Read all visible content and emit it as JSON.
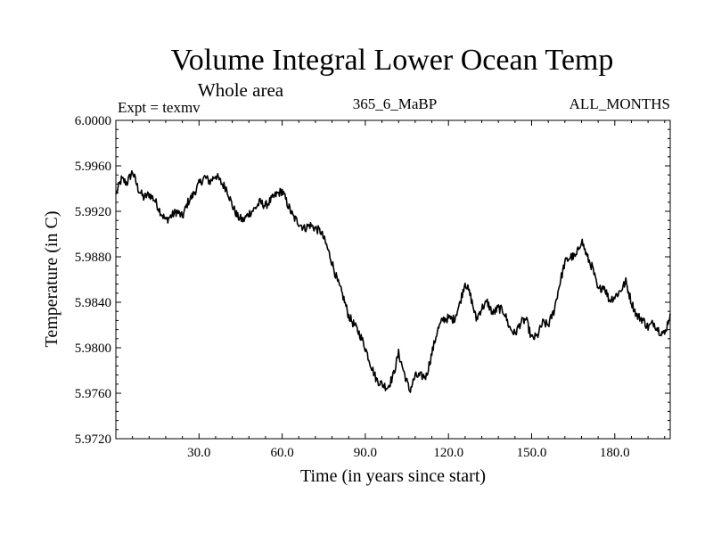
{
  "chart_data": {
    "type": "line",
    "title": "Volume Integral Lower Ocean Temp",
    "subtitle": "Whole area",
    "experiment": "Expt = texmv",
    "run_label": "365_6_MaBP",
    "months_label": "ALL_MONTHS",
    "xlabel": "Time (in years since start)",
    "ylabel": "Temperature (in C)",
    "xlim": [
      0,
      200
    ],
    "ylim": [
      5.972,
      6.0
    ],
    "xticks": [
      30,
      60,
      90,
      120,
      150,
      180
    ],
    "xtick_labels": [
      "30.0",
      "60.0",
      "90.0",
      "120.0",
      "150.0",
      "180.0"
    ],
    "yticks": [
      5.972,
      5.976,
      5.98,
      5.984,
      5.988,
      5.992,
      5.996,
      6.0
    ],
    "ytick_labels": [
      "5.9720",
      "5.9760",
      "5.9800",
      "5.9840",
      "5.9880",
      "5.9920",
      "5.9960",
      "6.0000"
    ],
    "line_color": "#000000",
    "series": [
      {
        "name": "Volume Integral Lower Ocean Temp",
        "x": [
          0,
          2,
          4,
          6,
          8,
          10,
          12,
          14,
          16,
          18,
          20,
          22,
          24,
          26,
          28,
          30,
          32,
          34,
          36,
          38,
          40,
          42,
          44,
          46,
          48,
          50,
          52,
          54,
          56,
          58,
          60,
          62,
          64,
          66,
          68,
          70,
          72,
          74,
          76,
          78,
          80,
          82,
          84,
          86,
          88,
          90,
          92,
          94,
          96,
          98,
          100,
          102,
          104,
          106,
          108,
          110,
          112,
          114,
          116,
          118,
          120,
          122,
          124,
          126,
          128,
          130,
          132,
          134,
          136,
          138,
          140,
          142,
          144,
          146,
          148,
          150,
          152,
          154,
          156,
          158,
          160,
          162,
          164,
          166,
          168,
          170,
          172,
          174,
          176,
          178,
          180,
          182,
          184,
          186,
          188,
          190,
          192,
          194,
          196,
          198,
          200
        ],
        "values": [
          5.9935,
          5.9948,
          5.9945,
          5.9955,
          5.994,
          5.9932,
          5.9935,
          5.993,
          5.992,
          5.9912,
          5.9916,
          5.992,
          5.9915,
          5.9928,
          5.9935,
          5.9944,
          5.995,
          5.9946,
          5.9952,
          5.9945,
          5.994,
          5.9925,
          5.9915,
          5.9912,
          5.9918,
          5.9922,
          5.9928,
          5.9925,
          5.993,
          5.9935,
          5.9938,
          5.9926,
          5.9915,
          5.991,
          5.9905,
          5.9908,
          5.9905,
          5.9902,
          5.989,
          5.9875,
          5.9858,
          5.9845,
          5.9828,
          5.982,
          5.9812,
          5.98,
          5.9785,
          5.9772,
          5.9768,
          5.9765,
          5.9775,
          5.9795,
          5.9778,
          5.9762,
          5.9775,
          5.9775,
          5.9775,
          5.9795,
          5.9815,
          5.9825,
          5.9826,
          5.9825,
          5.9838,
          5.9858,
          5.9845,
          5.9825,
          5.9835,
          5.984,
          5.983,
          5.9835,
          5.9832,
          5.9818,
          5.9812,
          5.9822,
          5.9825,
          5.9808,
          5.981,
          5.9822,
          5.982,
          5.9832,
          5.9855,
          5.9875,
          5.988,
          5.988,
          5.9895,
          5.988,
          5.987,
          5.985,
          5.9855,
          5.9842,
          5.9845,
          5.985,
          5.9858,
          5.984,
          5.9828,
          5.9825,
          5.9818,
          5.9822,
          5.9815,
          5.9812,
          5.983
        ]
      }
    ]
  }
}
